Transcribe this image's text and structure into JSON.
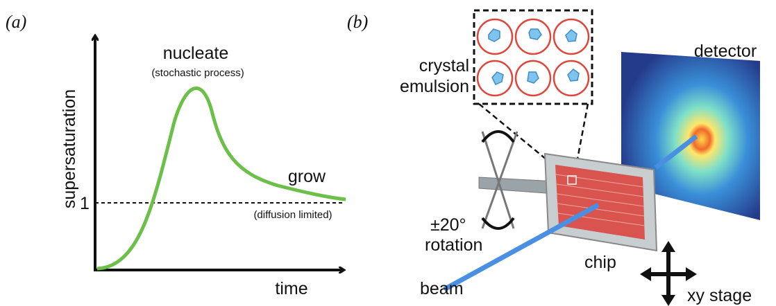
{
  "panel_a": {
    "label": "(a)",
    "y_axis_label": "supersaturation",
    "x_axis_label": "time",
    "level_label": "1",
    "nucleate": "nucleate",
    "nucleate_note": "(stochastic process)",
    "grow": "grow",
    "grow_note": "(diffusion limited)"
  },
  "panel_b": {
    "label": "(b)",
    "emulsion_line1": "crystal",
    "emulsion_line2": "emulsion",
    "detector": "detector",
    "rotation_angle": "±20°",
    "rotation": "rotation",
    "chip": "chip",
    "beam": "beam",
    "stage": "xy stage"
  }
}
